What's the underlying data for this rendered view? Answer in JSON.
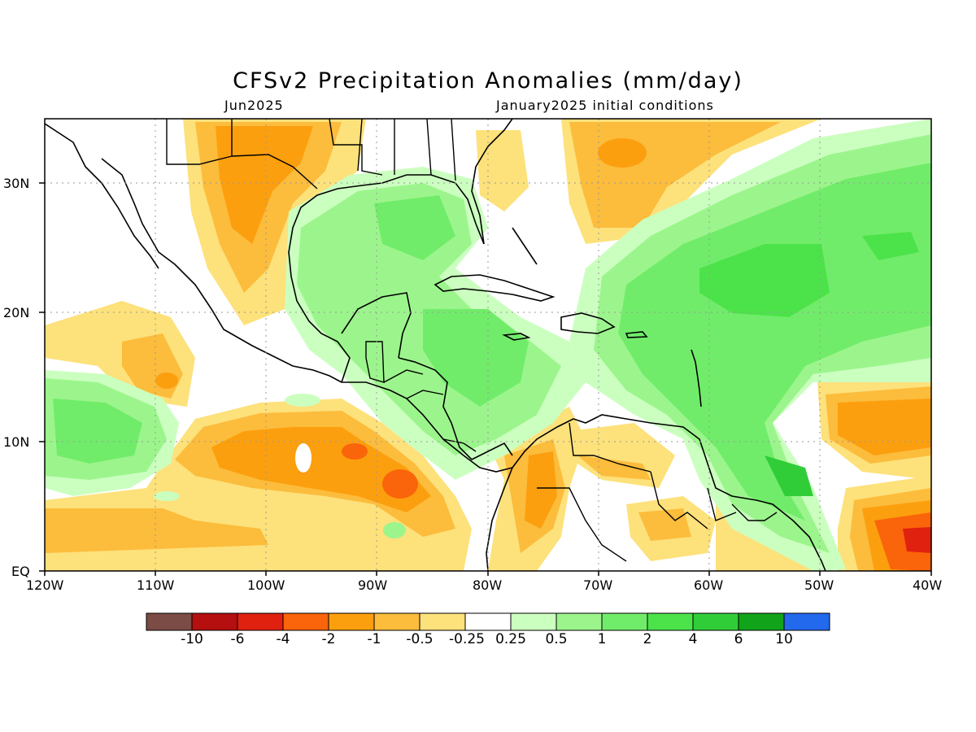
{
  "title": "CFSv2 Precipitation Anomalies (mm/day)",
  "subtitle_left": "Jun2025",
  "subtitle_right": "January2025 initial conditions",
  "map": {
    "lon_range": [
      -120,
      -40
    ],
    "lat_range": [
      0,
      35
    ],
    "x_ticks": [
      "120W",
      "110W",
      "100W",
      "90W",
      "80W",
      "70W",
      "60W",
      "50W",
      "40W"
    ],
    "y_ticks": [
      "EQ",
      "10N",
      "20N",
      "30N"
    ]
  },
  "colorbar": {
    "colors": [
      "#7b4b45",
      "#b50f0f",
      "#e0210f",
      "#fa640a",
      "#fc9f0e",
      "#fcbc3c",
      "#fde17b",
      "#ffffff",
      "#cbffc0",
      "#9cf58c",
      "#71ec6a",
      "#4ce34a",
      "#31cd38",
      "#11a41a",
      "#2369ee"
    ],
    "labels": [
      "-10",
      "-6",
      "-4",
      "-2",
      "-1",
      "-0.5",
      "-0.25",
      "0.25",
      "0.5",
      "1",
      "2",
      "4",
      "6",
      "10"
    ]
  }
}
